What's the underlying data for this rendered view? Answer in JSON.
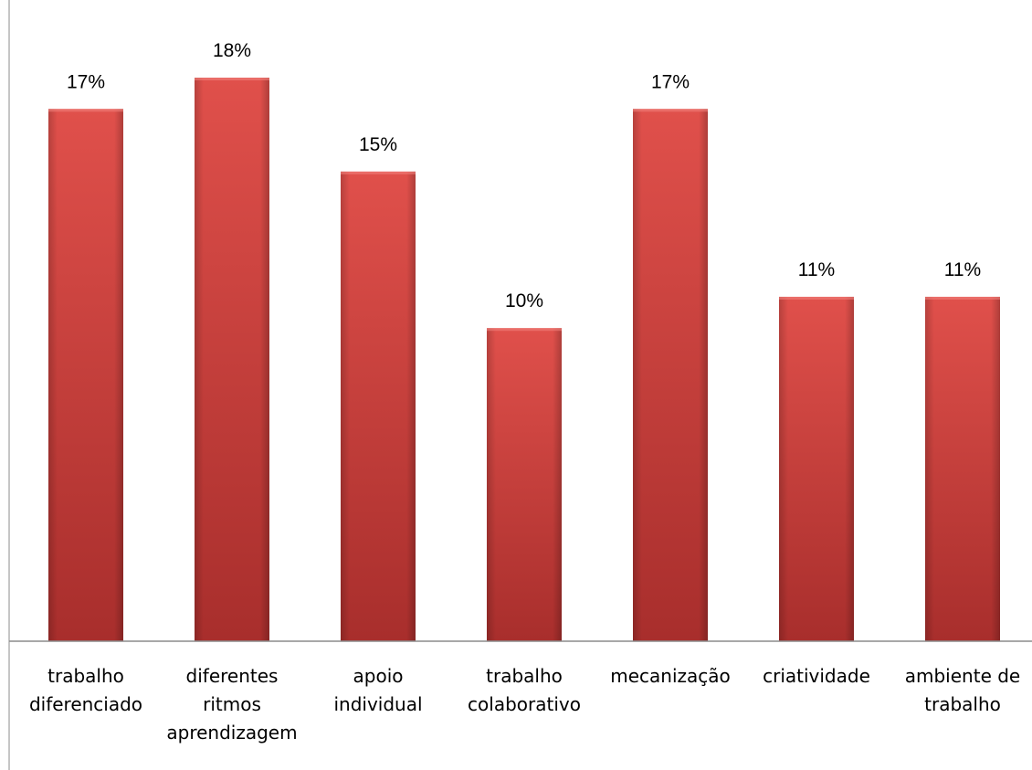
{
  "chart_data": {
    "type": "bar",
    "categories": [
      [
        "trabalho",
        "diferenciado"
      ],
      [
        "diferentes",
        "ritmos",
        "aprendizagem"
      ],
      [
        "apoio",
        "individual"
      ],
      [
        "trabalho",
        "colaborativo"
      ],
      [
        "mecanização"
      ],
      [
        "criatividade"
      ],
      [
        "ambiente de",
        "trabalho"
      ]
    ],
    "values": [
      17,
      18,
      15,
      10,
      17,
      11,
      11
    ],
    "data_labels": [
      "17%",
      "18%",
      "15%",
      "10%",
      "17%",
      "11%",
      "11%"
    ],
    "unit": "%",
    "ylim": [
      0,
      20
    ],
    "grid": false,
    "legend": "none",
    "bar_color": "#d9413f",
    "bar_color_dark": "#a82e2c",
    "axis_color": "#8c8c8c"
  }
}
